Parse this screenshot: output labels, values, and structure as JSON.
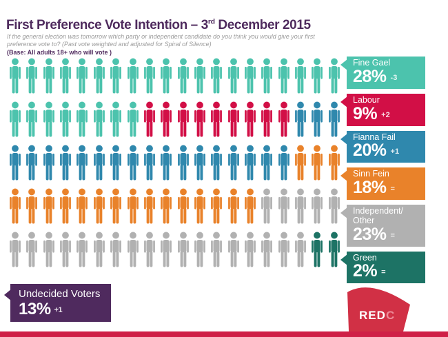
{
  "header": {
    "title_main": "First Preference Vote Intention – 3",
    "title_sup": "rd",
    "title_rest": " December 2015",
    "subtitle_line1": "If the general election was tomorrow which party or independent candidate do you think you would give your first",
    "subtitle_line2": "preference vote to?  (Past vote weighted and adjusted for Spiral of Silence)",
    "base_note": "(Base: All adults 18+ who will vote )"
  },
  "chart_data": {
    "type": "pictogram",
    "title": "First Preference Vote Intention – 3rd December 2015",
    "icon_unit_pct": 1,
    "total_icons": 100,
    "icons_per_row": 20,
    "rows": 5,
    "series": [
      {
        "name": "Fine Gael",
        "value": 28,
        "change": "-3",
        "color": "#4cc3ad"
      },
      {
        "name": "Labour",
        "value": 9,
        "change": "+2",
        "color": "#d20f46"
      },
      {
        "name": "Fianna Fail",
        "value": 20,
        "change": "+1",
        "color": "#2f88ad"
      },
      {
        "name": "Sinn Fein",
        "value": 18,
        "change": "=",
        "color": "#e9822a"
      },
      {
        "name": "Independent/Other",
        "value": 23,
        "change": "=",
        "color": "#b1b1b1"
      },
      {
        "name": "Green",
        "value": 2,
        "change": "=",
        "color": "#1d7365"
      }
    ],
    "undecided": {
      "name": "Undecided Voters",
      "value": 13,
      "change": "+1",
      "color": "#4f2a5e"
    }
  },
  "legend": {
    "items": [
      {
        "id": "fine-gael",
        "name": "Fine Gael",
        "value": "28%",
        "change": "-3",
        "color": "#4cc3ad"
      },
      {
        "id": "labour",
        "name": "Labour",
        "value": "9%",
        "change": "+2",
        "color": "#d20f46"
      },
      {
        "id": "fianna-fail",
        "name": "Fianna Fail",
        "value": "20%",
        "change": "+1",
        "color": "#2f88ad"
      },
      {
        "id": "sinn-fein",
        "name": "Sinn Fein",
        "value": "18%",
        "change": "=",
        "color": "#e9822a"
      },
      {
        "id": "independent",
        "name": "Independent/ Other",
        "value": "23%",
        "change": "=",
        "color": "#b1b1b1"
      },
      {
        "id": "green",
        "name": "Green",
        "value": "2%",
        "change": "=",
        "color": "#1d7365"
      }
    ]
  },
  "undecided": {
    "label": "Undecided Voters",
    "value": "13%",
    "change": "+1"
  },
  "logo": {
    "text_red": "RED",
    "text_c": "C",
    "red": "#d13045",
    "c_color": "#ee8b99"
  },
  "colors": {
    "title_purple": "#4f2b5e",
    "subtitle_gray": "#9b9b9b",
    "bottom_bar": "#cf2047"
  }
}
